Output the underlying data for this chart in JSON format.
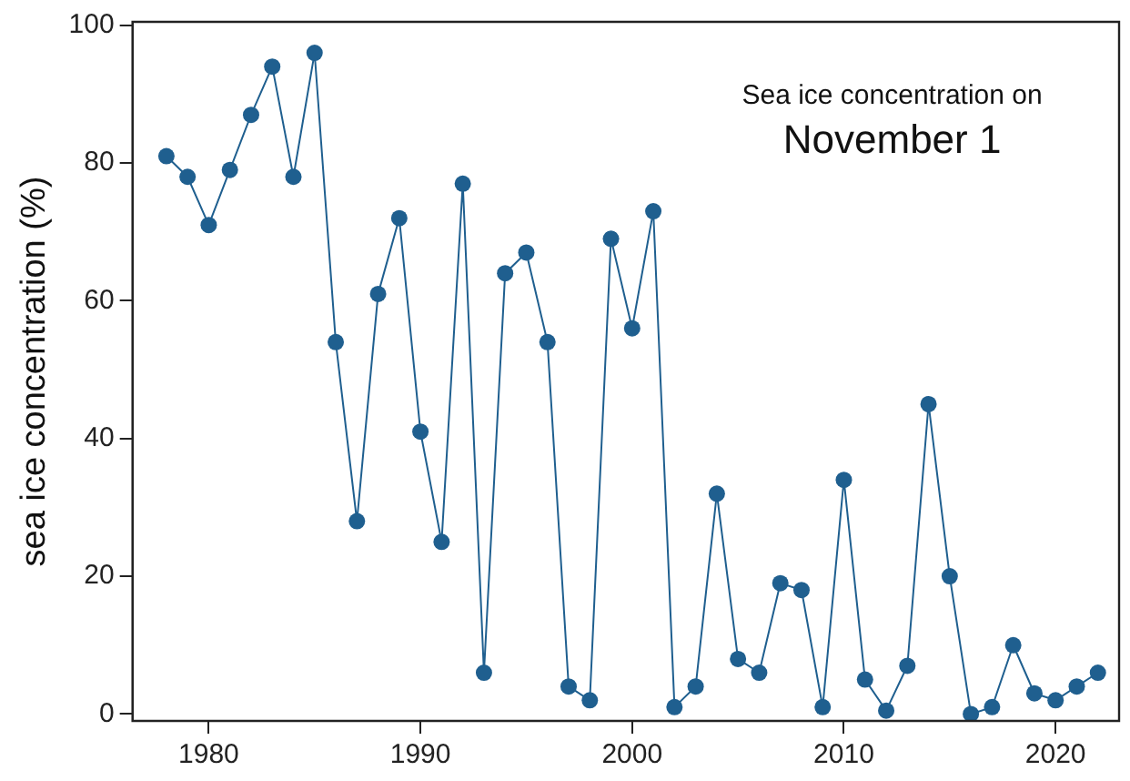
{
  "chart_data": {
    "type": "line",
    "ylabel": "sea ice concentration (%)",
    "annotations": [
      "Sea ice concentration on",
      "November 1"
    ],
    "x": [
      1978,
      1979,
      1980,
      1981,
      1982,
      1983,
      1984,
      1985,
      1986,
      1987,
      1988,
      1989,
      1990,
      1991,
      1992,
      1993,
      1994,
      1995,
      1996,
      1997,
      1998,
      1999,
      2000,
      2001,
      2002,
      2003,
      2004,
      2005,
      2006,
      2007,
      2008,
      2009,
      2010,
      2011,
      2012,
      2013,
      2014,
      2015,
      2016,
      2017,
      2018,
      2019,
      2020,
      2021,
      2022
    ],
    "series": [
      {
        "color": "#1f5f8f",
        "values": [
          81,
          78,
          71,
          79,
          87,
          94,
          78,
          96,
          54,
          28,
          61,
          72,
          41,
          25,
          77,
          6,
          64,
          67,
          54,
          4,
          2,
          69,
          56,
          73,
          1,
          4,
          32,
          8,
          6,
          19,
          18,
          1,
          34,
          5,
          0.5,
          7,
          45,
          20,
          0,
          1,
          10,
          3,
          2,
          4,
          6
        ]
      }
    ],
    "xlim": [
      1976.4,
      2023
    ],
    "xticks": [
      1980,
      1990,
      2000,
      2010,
      2020
    ],
    "ylim": [
      -1,
      100.5
    ],
    "yticks": [
      0,
      20,
      40,
      60,
      80,
      100
    ],
    "marker": "circle",
    "line_style": "solid",
    "grid": false,
    "legend": false
  }
}
